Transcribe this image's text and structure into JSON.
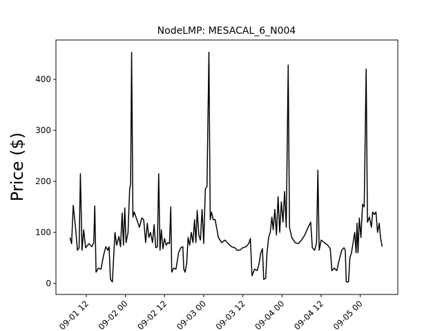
{
  "chart_data": {
    "type": "line",
    "title": "NodeLMP: MESACAL_6_N004",
    "ylabel": "Price ($)",
    "x": [
      7,
      7.5,
      8,
      8.7,
      9.3,
      9.8,
      10.2,
      10.7,
      11.2,
      11.8,
      12.8,
      13.7,
      14.3,
      14.6,
      15,
      15.7,
      16.5,
      17.3,
      18,
      18.6,
      19,
      19.4,
      20,
      20.3,
      20.8,
      21.3,
      22,
      22.5,
      23,
      23.4,
      23.8,
      24.2,
      24.8,
      25.3,
      25.6,
      25.9,
      26.3,
      26.7,
      27.5,
      28.3,
      29,
      29.6,
      30.2,
      30.7,
      31.2,
      31.7,
      32.3,
      32.8,
      33.3,
      33.8,
      34.2,
      34.6,
      35,
      35.5,
      36,
      36.5,
      37,
      37.5,
      37.9,
      38.2,
      38.8,
      39.5,
      40.3,
      41,
      41.6,
      41.9,
      42.3,
      42.8,
      43.2,
      43.7,
      44.2,
      44.7,
      45.2,
      45.6,
      46,
      46.5,
      47,
      47.5,
      48,
      48.5,
      49,
      49.6,
      50,
      50.4,
      50.9,
      51.5,
      52.5,
      53.5,
      54.5,
      55.5,
      56.5,
      57.5,
      58.3,
      59,
      60,
      61,
      61.8,
      62.3,
      62.8,
      63.6,
      64.4,
      65,
      65.5,
      66,
      66.4,
      67,
      67.4,
      67.9,
      68.4,
      68.9,
      69.3,
      69.8,
      70.3,
      70.8,
      71.3,
      71.8,
      72.3,
      72.8,
      73.3,
      73.9,
      74.3,
      75,
      76,
      77,
      78,
      79,
      80,
      80.8,
      81.3,
      82,
      82.6,
      83,
      83.4,
      84,
      85,
      86,
      86.8,
      87.3,
      88,
      88.8,
      89.5,
      90.3,
      91,
      91.4,
      91.7,
      92.4,
      92.8,
      93.3,
      93.8,
      94.3,
      94.7,
      95,
      95.3,
      95.7,
      96.2,
      96.7,
      97.2,
      97.8,
      98.2,
      98.8,
      99.4,
      99.8,
      100.3,
      100.8,
      101.3,
      101.8,
      102.2,
      102.7
    ],
    "values": [
      90,
      78,
      153,
      110,
      65,
      70,
      215,
      65,
      105,
      70,
      78,
      72,
      80,
      152,
      22,
      30,
      28,
      55,
      72,
      65,
      72,
      8,
      3,
      40,
      100,
      75,
      92,
      72,
      138,
      75,
      148,
      80,
      100,
      185,
      195,
      453,
      130,
      140,
      125,
      110,
      128,
      125,
      80,
      118,
      90,
      100,
      80,
      115,
      70,
      72,
      215,
      65,
      105,
      68,
      88,
      75,
      80,
      78,
      150,
      22,
      30,
      28,
      60,
      70,
      72,
      28,
      22,
      40,
      90,
      75,
      100,
      80,
      125,
      80,
      143,
      95,
      85,
      145,
      78,
      185,
      190,
      453,
      125,
      140,
      125,
      125,
      90,
      80,
      85,
      78,
      72,
      70,
      65,
      65,
      70,
      72,
      78,
      88,
      15,
      28,
      25,
      40,
      60,
      68,
      8,
      10,
      60,
      90,
      100,
      130,
      105,
      145,
      95,
      170,
      100,
      160,
      120,
      180,
      110,
      428,
      110,
      90,
      80,
      78,
      85,
      95,
      110,
      120,
      70,
      65,
      80,
      222,
      65,
      85,
      80,
      75,
      68,
      25,
      30,
      25,
      45,
      65,
      70,
      65,
      3,
      3,
      50,
      60,
      80,
      100,
      60,
      118,
      60,
      128,
      90,
      155,
      150,
      420,
      120,
      130,
      110,
      140,
      135,
      140,
      100,
      118,
      90,
      72
    ],
    "color": "#000000",
    "xlim": [
      2.7,
      107.5
    ],
    "xticks": [
      {
        "value": 12,
        "label": "09-01 12"
      },
      {
        "value": 24,
        "label": "09-02 00"
      },
      {
        "value": 36,
        "label": "09-02 12"
      },
      {
        "value": 48,
        "label": "09-03 00"
      },
      {
        "value": 60,
        "label": "09-03 12"
      },
      {
        "value": 72,
        "label": "09-04 00"
      },
      {
        "value": 84,
        "label": "09-04 12"
      },
      {
        "value": 96,
        "label": "09-05 00"
      }
    ],
    "ylim": [
      -21.6,
      477
    ],
    "yticks": [
      0,
      100,
      200,
      300,
      400
    ],
    "grid": false
  }
}
